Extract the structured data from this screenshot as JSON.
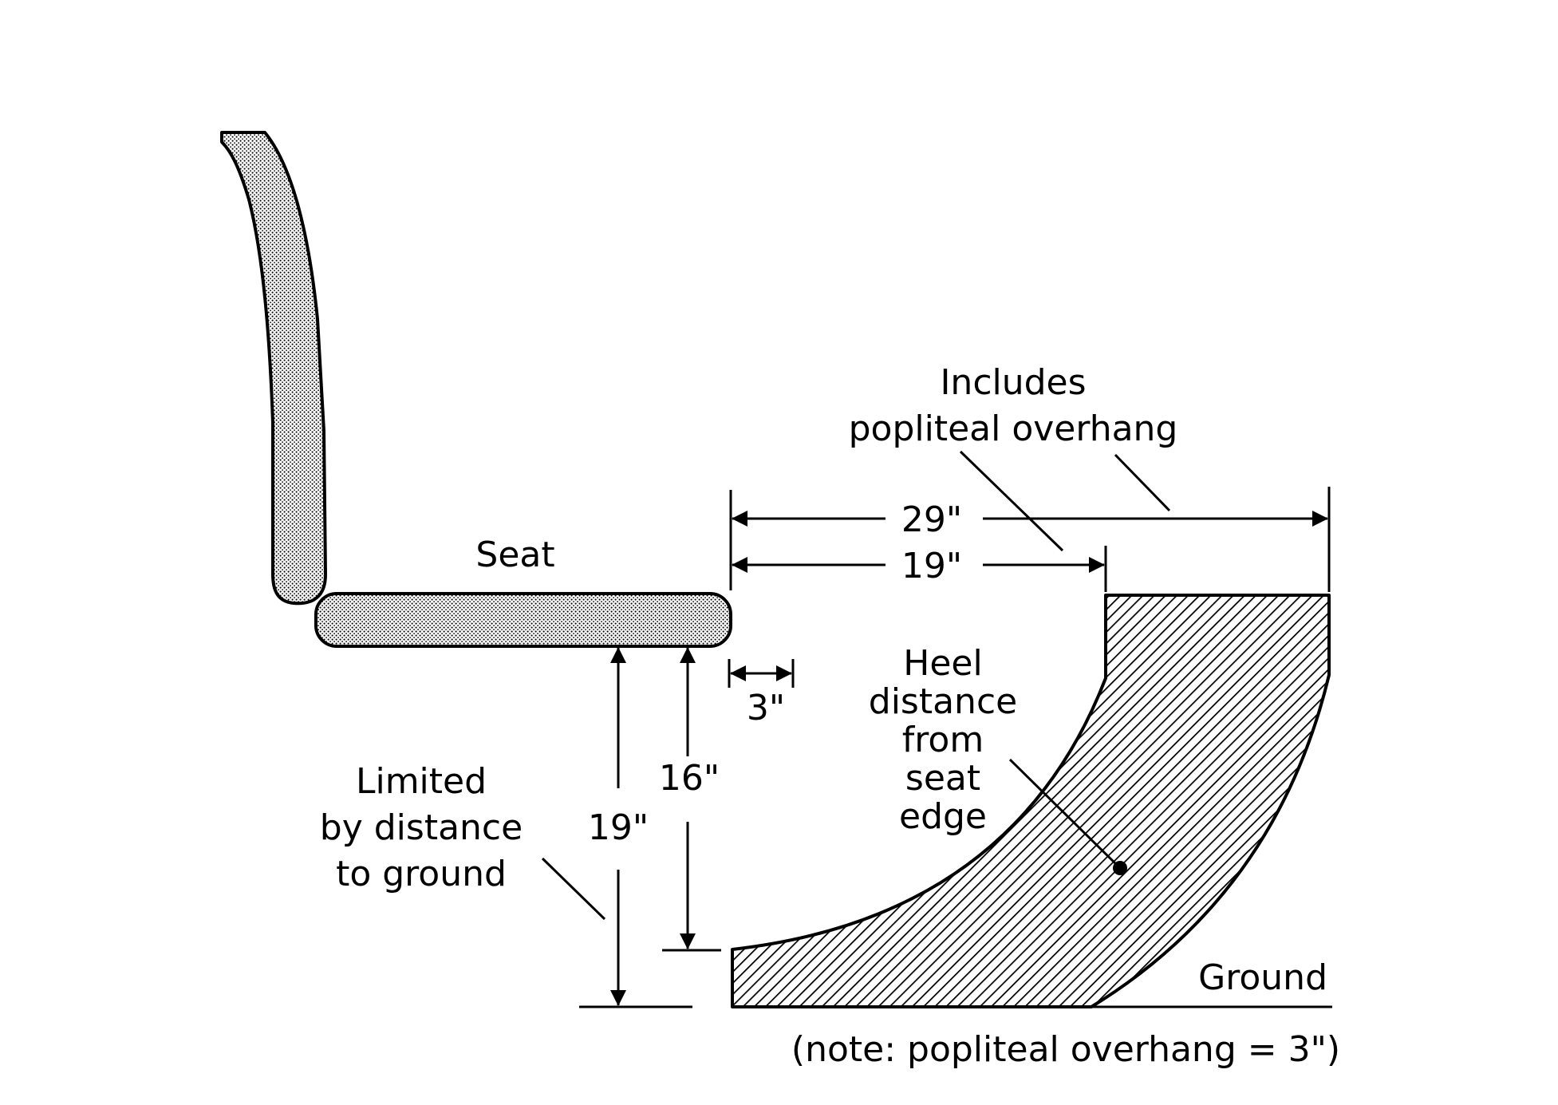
{
  "labels": {
    "seat": "Seat",
    "includes_line1": "Includes",
    "includes_line2": "popliteal overhang",
    "heel_line1": "Heel",
    "heel_line2": "distance",
    "heel_line3": "from",
    "heel_line4": "seat",
    "heel_line5": "edge",
    "limited_line1": "Limited",
    "limited_line2": "by distance",
    "limited_line3": "to ground",
    "ground": "Ground",
    "note": "(note: popliteal overhang = 3\")"
  },
  "dimensions": {
    "span_29": "29\"",
    "span_19_horizontal": "19\"",
    "overhang_3": "3\"",
    "height_19": "19\"",
    "height_16": "16\""
  }
}
